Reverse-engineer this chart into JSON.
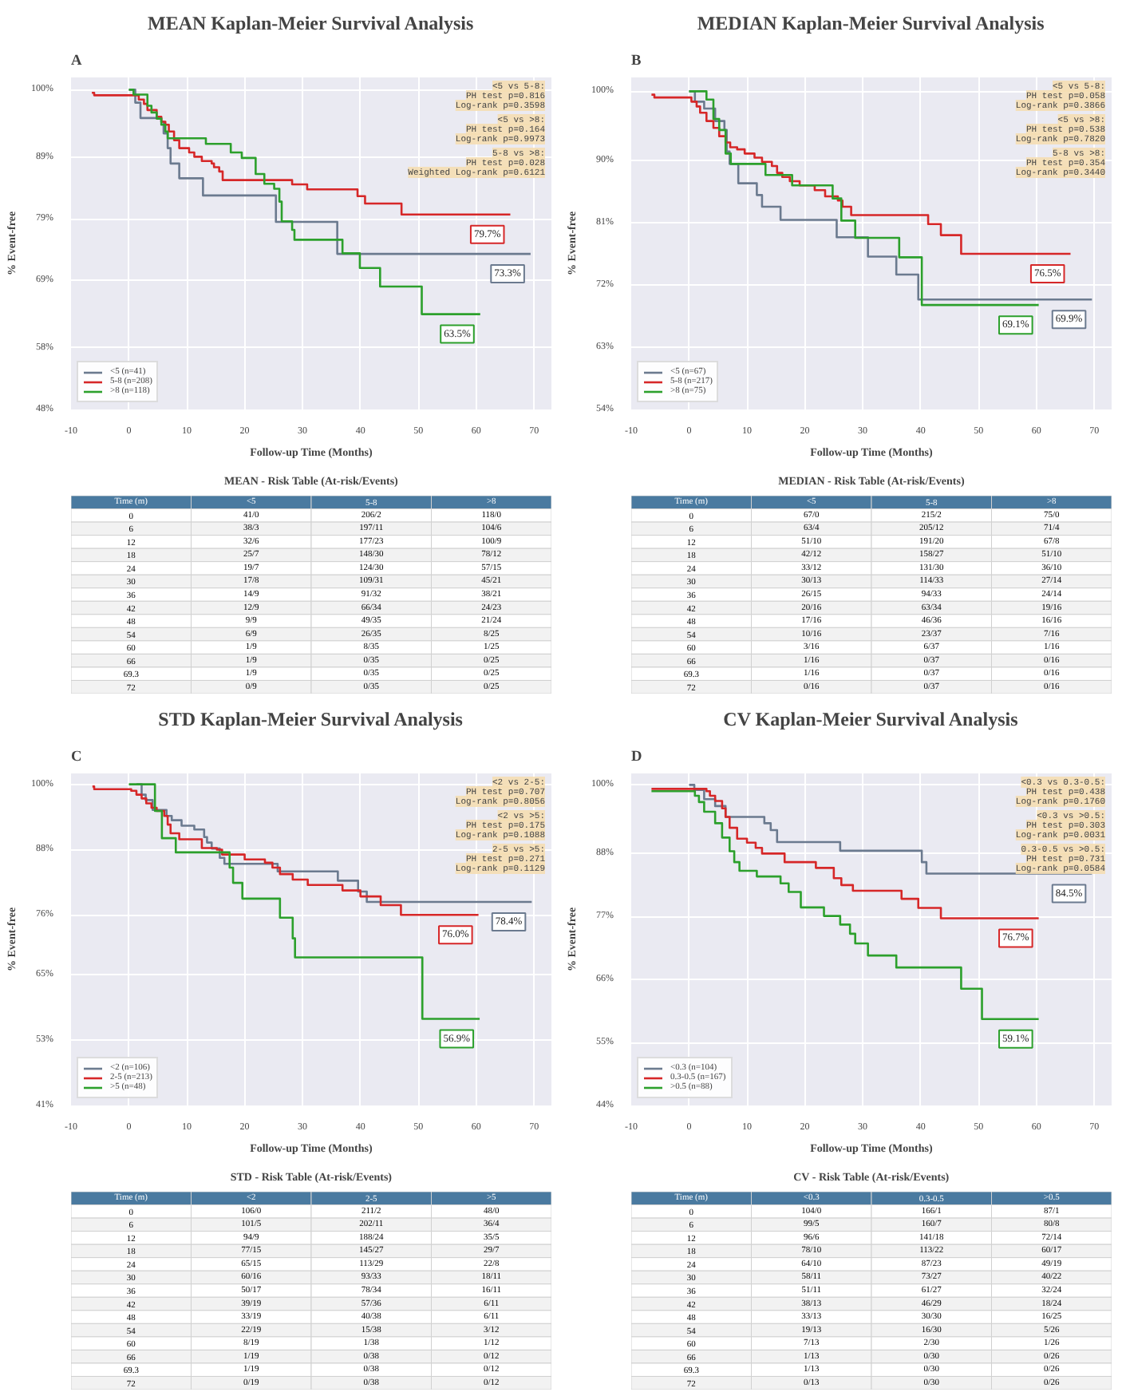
{
  "chart_data": [
    {
      "type": "step",
      "title": "MEAN Kaplan-Meier Survival Analysis",
      "xlabel": "Follow-up Time (Months)",
      "ylabel": "% Event-free",
      "xlim": [
        -10,
        73
      ],
      "xticks": [
        -10,
        0,
        10,
        20,
        30,
        40,
        50,
        60,
        70
      ],
      "ylim": [
        48,
        102
      ],
      "yticks": [
        {
          "value": 48,
          "label": "48%"
        },
        {
          "value": 58,
          "label": "58%"
        },
        {
          "value": 69,
          "label": "69%"
        },
        {
          "value": 79,
          "label": "79%"
        },
        {
          "value": 89,
          "label": "89%"
        },
        {
          "value": 100,
          "label": "100%"
        }
      ],
      "grid": true,
      "legend": "bottom left",
      "series": [
        {
          "name": "<5 (n=41)",
          "color": "#6b7a8f",
          "x": [
            0,
            1.1,
            2,
            5.6,
            6,
            6.7,
            7.2,
            8.7,
            12.8,
            25.4,
            36,
            69.4
          ],
          "values": [
            100,
            97.9,
            95.4,
            94.8,
            92.9,
            90.5,
            88,
            85.6,
            82.8,
            78.5,
            73.3,
            73.3
          ]
        },
        {
          "name": "5-8 (n=208)",
          "color": "#d62728",
          "x": [
            -6.4,
            -6,
            1.7,
            2.6,
            3.2,
            4.8,
            5.6,
            6.3,
            6.9,
            7.8,
            8.7,
            10.4,
            11.3,
            12.6,
            14.3,
            14.7,
            15.6,
            16.2,
            28.2,
            30.8,
            39.5,
            40.8,
            47.1,
            65.9
          ],
          "values": [
            99.5,
            99.1,
            98.4,
            97.7,
            96.7,
            95.6,
            94.8,
            94.3,
            93.2,
            91.8,
            90.5,
            89.8,
            89.1,
            88.4,
            88,
            87.4,
            86.7,
            85.3,
            84.6,
            83.8,
            82.7,
            81.5,
            79.7,
            79.7
          ]
        },
        {
          "name": ">8 (n=118)",
          "color": "#2ca02c",
          "x": [
            0,
            0.8,
            3.2,
            3.9,
            4.8,
            5.6,
            6.3,
            6.7,
            13.3,
            17.6,
            19.5,
            21.9,
            23.4,
            25.1,
            26,
            26.4,
            28.2,
            28.6,
            36.9,
            39.9,
            43.4,
            50.6,
            60.7
          ],
          "values": [
            100,
            99.2,
            97.4,
            96.3,
            95.3,
            94.3,
            93.2,
            92.1,
            91.2,
            89.8,
            88.9,
            86.3,
            84.7,
            83.9,
            81.8,
            78.6,
            77.2,
            75.6,
            73.4,
            71,
            68,
            63.5,
            63.5
          ]
        }
      ],
      "annotations": [
        "A",
        "<5 vs 5-8:\nPH test p=0.816\nLog-rank p=0.3598",
        "<5 vs >8:\nPH test p=0.164\nLog-rank p=0.9973",
        "5-8 vs >8:\nPH test p=0.028\nWeighted Log-rank p=0.6121",
        {
          "text": "73.3%",
          "x": 69.4,
          "y": 73.3
        },
        {
          "text": "79.7%",
          "x": 65.9,
          "y": 79.7
        },
        {
          "text": "63.5%",
          "x": 60.7,
          "y": 63.5
        }
      ]
    },
    {
      "type": "other",
      "title": "MEAN - Risk Table (At-risk/Events)",
      "categories": [
        "Time (m)",
        "<5",
        "5-8",
        ">8"
      ],
      "y_categories": [
        "0",
        "6",
        "12",
        "18",
        "24",
        "30",
        "36",
        "42",
        "48",
        "54",
        "60",
        "66",
        "69.3",
        "72"
      ],
      "cell_labels": [
        [
          "41/0",
          "206/2",
          "118/0"
        ],
        [
          "38/3",
          "197/11",
          "104/6"
        ],
        [
          "32/6",
          "177/23",
          "100/9"
        ],
        [
          "25/7",
          "148/30",
          "78/12"
        ],
        [
          "19/7",
          "124/30",
          "57/15"
        ],
        [
          "17/8",
          "109/31",
          "45/21"
        ],
        [
          "14/9",
          "91/32",
          "38/21"
        ],
        [
          "12/9",
          "66/34",
          "24/23"
        ],
        [
          "9/9",
          "49/35",
          "21/24"
        ],
        [
          "6/9",
          "26/35",
          "8/25"
        ],
        [
          "1/9",
          "8/35",
          "1/25"
        ],
        [
          "1/9",
          "0/35",
          "0/25"
        ],
        [
          "1/9",
          "0/35",
          "0/25"
        ],
        [
          "0/9",
          "0/35",
          "0/25"
        ]
      ]
    },
    {
      "type": "step",
      "title": "MEDIAN Kaplan-Meier Survival Analysis",
      "xlabel": "Follow-up Time (Months)",
      "ylabel": "% Event-free",
      "xlim": [
        -10,
        73
      ],
      "xticks": [
        -10,
        0,
        10,
        20,
        30,
        40,
        50,
        60,
        70
      ],
      "ylim": [
        54,
        102
      ],
      "yticks": [
        {
          "value": 54,
          "label": "54%"
        },
        {
          "value": 63,
          "label": "63%"
        },
        {
          "value": 72,
          "label": "72%"
        },
        {
          "value": 81,
          "label": "81%"
        },
        {
          "value": 90,
          "label": "90%"
        },
        {
          "value": 100,
          "label": "100%"
        }
      ],
      "grid": true,
      "legend": "bottom left",
      "series": [
        {
          "name": "<5 (n=67)",
          "color": "#6b7a8f",
          "x": [
            0,
            1,
            2.6,
            4.5,
            6.1,
            6.5,
            7,
            8.5,
            11.7,
            12.6,
            15.8,
            25.5,
            30.9,
            35.8,
            39.6,
            69.6
          ],
          "values": [
            100,
            98.5,
            97.5,
            95.7,
            94.4,
            91.3,
            89.5,
            86.7,
            85,
            83.3,
            81.4,
            78.9,
            76.1,
            73.5,
            69.9,
            69.9
          ]
        },
        {
          "name": "5-8 (n=217)",
          "color": "#d62728",
          "x": [
            -6.5,
            -6,
            0.4,
            1.3,
            1.9,
            3,
            4.2,
            5.2,
            6.3,
            7.1,
            8.3,
            9.6,
            11.3,
            12.6,
            14.3,
            15.2,
            16.1,
            17.4,
            19.1,
            21.7,
            23.5,
            25.7,
            26.5,
            28,
            41.3,
            43.5,
            47,
            50.4,
            65.9
          ],
          "values": [
            99.5,
            99.1,
            98.5,
            97.8,
            96.9,
            95.7,
            94.7,
            93.5,
            92.6,
            91.9,
            91.6,
            91,
            90.4,
            89.8,
            89.2,
            88.2,
            87.6,
            87,
            86.4,
            85.7,
            84.8,
            84.2,
            83.3,
            82.1,
            80.8,
            79.2,
            76.5,
            76.5,
            76.5
          ]
        },
        {
          "name": ">8 (n=75)",
          "color": "#2ca02c",
          "x": [
            0,
            3,
            4.2,
            5.2,
            6.3,
            7.2,
            13.2,
            17.8,
            24.8,
            26.3,
            28.7,
            36.3,
            40.2,
            60.4
          ],
          "values": [
            100,
            98.8,
            96,
            94.4,
            91,
            89.5,
            87.9,
            86.4,
            84.5,
            81.3,
            78.8,
            76,
            69.1,
            69.1
          ]
        }
      ],
      "annotations": [
        "B",
        "<5 vs 5-8:\nPH test p=0.058\nLog-rank p=0.3866",
        "<5 vs >8:\nPH test p=0.538\nLog-rank p=0.7820",
        "5-8 vs >8:\nPH test p=0.354\nLog-rank p=0.3440",
        {
          "text": "69.9%",
          "x": 69.6,
          "y": 69.9
        },
        {
          "text": "76.5%",
          "x": 65.9,
          "y": 76.5
        },
        {
          "text": "69.1%",
          "x": 60.4,
          "y": 69.1
        }
      ]
    },
    {
      "type": "other",
      "title": "MEDIAN - Risk Table (At-risk/Events)",
      "categories": [
        "Time (m)",
        "<5",
        "5-8",
        ">8"
      ],
      "y_categories": [
        "0",
        "6",
        "12",
        "18",
        "24",
        "30",
        "36",
        "42",
        "48",
        "54",
        "60",
        "66",
        "69.3",
        "72"
      ],
      "cell_labels": [
        [
          "67/0",
          "215/2",
          "75/0"
        ],
        [
          "63/4",
          "205/12",
          "71/4"
        ],
        [
          "51/10",
          "191/20",
          "67/8"
        ],
        [
          "42/12",
          "158/27",
          "51/10"
        ],
        [
          "33/12",
          "131/30",
          "36/10"
        ],
        [
          "30/13",
          "114/33",
          "27/14"
        ],
        [
          "26/15",
          "94/33",
          "24/14"
        ],
        [
          "20/16",
          "63/34",
          "19/16"
        ],
        [
          "17/16",
          "46/36",
          "16/16"
        ],
        [
          "10/16",
          "23/37",
          "7/16"
        ],
        [
          "3/16",
          "6/37",
          "1/16"
        ],
        [
          "1/16",
          "0/37",
          "0/16"
        ],
        [
          "1/16",
          "0/37",
          "0/16"
        ],
        [
          "0/16",
          "0/37",
          "0/16"
        ]
      ]
    },
    {
      "type": "step",
      "title": "STD Kaplan-Meier Survival Analysis",
      "xlabel": "Follow-up Time (Months)",
      "ylabel": "% Event-free",
      "xlim": [
        -10,
        73
      ],
      "xticks": [
        -10,
        0,
        10,
        20,
        30,
        40,
        50,
        60,
        70
      ],
      "ylim": [
        41,
        102
      ],
      "yticks": [
        {
          "value": 41,
          "label": "41%"
        },
        {
          "value": 53,
          "label": "53%"
        },
        {
          "value": 65,
          "label": "65%"
        },
        {
          "value": 76,
          "label": "76%"
        },
        {
          "value": 88,
          "label": "88%"
        },
        {
          "value": 100,
          "label": "100%"
        }
      ],
      "grid": true,
      "legend": "bottom left",
      "series": [
        {
          "name": "<2 (n=106)",
          "color": "#6b7a8f",
          "x": [
            1.3,
            2.2,
            2.9,
            4.1,
            6.5,
            7.4,
            9.1,
            11.3,
            13,
            13.5,
            14.3,
            15.7,
            16.5,
            25.7,
            36.1,
            39.6,
            41.1,
            69.6
          ],
          "values": [
            100,
            98.1,
            97.1,
            95.3,
            94.2,
            93.4,
            92.4,
            91.7,
            90.3,
            89.3,
            88.2,
            86.5,
            85.4,
            84,
            82.3,
            80.3,
            78.4,
            78.4
          ]
        },
        {
          "name": "2-5 (n=213)",
          "color": "#d62728",
          "x": [
            -6.3,
            -6,
            0.4,
            1.3,
            2.2,
            3,
            3.9,
            4.8,
            6.1,
            6.7,
            7.2,
            8.7,
            12.6,
            15.2,
            16.1,
            20,
            23.5,
            24.8,
            26.1,
            28.3,
            30.9,
            36.9,
            40,
            43.5,
            47,
            60.4
          ],
          "values": [
            99.6,
            99.1,
            98.8,
            98.1,
            97.4,
            96.5,
            95.7,
            95.1,
            94.2,
            92.6,
            91,
            89.9,
            88.3,
            88,
            87.1,
            86.2,
            85.6,
            84.7,
            83.5,
            82.5,
            81.5,
            80.5,
            79.4,
            77.8,
            76,
            76
          ]
        },
        {
          "name": ">5 (n=48)",
          "color": "#2ca02c",
          "x": [
            0,
            4.5,
            5.7,
            8.1,
            17.4,
            18,
            19.6,
            26.1,
            28.3,
            28.7,
            50.7,
            60.6
          ],
          "values": [
            100,
            95.1,
            90.1,
            87.5,
            84.7,
            81.9,
            79,
            75.5,
            71.7,
            68.2,
            56.9,
            56.9
          ]
        }
      ],
      "annotations": [
        "C",
        "<2 vs 2-5:\nPH test p=0.707\nLog-rank p=0.8056",
        "<2 vs >5:\nPH test p=0.175\nLog-rank p=0.1088",
        "2-5 vs >5:\nPH test p=0.271\nLog-rank p=0.1129",
        {
          "text": "78.4%",
          "x": 69.6,
          "y": 78.4
        },
        {
          "text": "76.0%",
          "x": 60.4,
          "y": 76
        },
        {
          "text": "56.9%",
          "x": 60.6,
          "y": 56.9
        }
      ]
    },
    {
      "type": "other",
      "title": "STD - Risk Table (At-risk/Events)",
      "categories": [
        "Time (m)",
        "<2",
        "2-5",
        ">5"
      ],
      "y_categories": [
        "0",
        "6",
        "12",
        "18",
        "24",
        "30",
        "36",
        "42",
        "48",
        "54",
        "60",
        "66",
        "69.3",
        "72"
      ],
      "cell_labels": [
        [
          "106/0",
          "211/2",
          "48/0"
        ],
        [
          "101/5",
          "202/11",
          "36/4"
        ],
        [
          "94/9",
          "188/24",
          "35/5"
        ],
        [
          "77/15",
          "145/27",
          "29/7"
        ],
        [
          "65/15",
          "113/29",
          "22/8"
        ],
        [
          "60/16",
          "93/33",
          "18/11"
        ],
        [
          "50/17",
          "78/34",
          "16/11"
        ],
        [
          "39/19",
          "57/36",
          "6/11"
        ],
        [
          "33/19",
          "40/38",
          "6/11"
        ],
        [
          "22/19",
          "15/38",
          "3/12"
        ],
        [
          "8/19",
          "1/38",
          "1/12"
        ],
        [
          "1/19",
          "0/38",
          "0/12"
        ],
        [
          "1/19",
          "0/38",
          "0/12"
        ],
        [
          "0/19",
          "0/38",
          "0/12"
        ]
      ]
    },
    {
      "type": "step",
      "title": "CV Kaplan-Meier Survival Analysis",
      "xlabel": "Follow-up Time (Months)",
      "ylabel": "% Event-free",
      "xlim": [
        -10,
        73
      ],
      "xticks": [
        -10,
        0,
        10,
        20,
        30,
        40,
        50,
        60,
        70
      ],
      "ylim": [
        44,
        102
      ],
      "yticks": [
        {
          "value": 44,
          "label": "44%"
        },
        {
          "value": 55,
          "label": "55%"
        },
        {
          "value": 66,
          "label": "66%"
        },
        {
          "value": 77,
          "label": "77%"
        },
        {
          "value": 88,
          "label": "88%"
        },
        {
          "value": 100,
          "label": "100%"
        }
      ],
      "grid": true,
      "legend": "bottom left",
      "series": [
        {
          "name": "<0.3 (n=104)",
          "color": "#6b7a8f",
          "x": [
            0,
            0.9,
            2.6,
            4.5,
            6.3,
            13,
            14.1,
            15.2,
            26.1,
            40.2,
            41,
            69.6
          ],
          "values": [
            100,
            99.1,
            97.5,
            96.3,
            94.4,
            93.3,
            92.1,
            90,
            88.5,
            86.5,
            84.5,
            84.5
          ]
        },
        {
          "name": "0.3-0.5 (n=167)",
          "color": "#d62728",
          "x": [
            -6.5,
            3,
            3.6,
            4.5,
            5.7,
            6.3,
            7,
            8.3,
            10,
            11.5,
            12.6,
            16.5,
            21.9,
            25,
            26.3,
            28.3,
            36.7,
            39.6,
            43.5,
            60.4
          ],
          "values": [
            99.3,
            98.9,
            98.1,
            97.2,
            95.9,
            94.4,
            92.5,
            90.6,
            89.9,
            89,
            88,
            86.5,
            85.5,
            83.7,
            82.5,
            81.5,
            80.1,
            78.5,
            76.7,
            76.7
          ]
        },
        {
          "name": ">0.5 (n=88)",
          "color": "#2ca02c",
          "x": [
            -6.5,
            1,
            1.7,
            2.6,
            4.5,
            5.7,
            7,
            7.8,
            8.7,
            11.7,
            15.8,
            17.2,
            19.3,
            23.3,
            26.1,
            27.8,
            28.7,
            30.9,
            35.8,
            47,
            50.6,
            60.4
          ],
          "values": [
            98.9,
            98.1,
            97,
            95.3,
            93.3,
            90.8,
            88.4,
            86.5,
            85,
            84,
            82.8,
            81.3,
            78.6,
            77.1,
            75.6,
            74,
            72.3,
            70.2,
            68.1,
            64.4,
            59.1,
            59.1
          ]
        }
      ],
      "annotations": [
        "D",
        "<0.3 vs 0.3-0.5:\nPH test p=0.438\nLog-rank p=0.1760",
        "<0.3 vs >0.5:\nPH test p=0.303\nLog-rank p=0.0031",
        "0.3-0.5 vs >0.5:\nPH test p=0.731\nLog-rank p=0.0584",
        {
          "text": "84.5%",
          "x": 69.6,
          "y": 84.5
        },
        {
          "text": "76.7%",
          "x": 60.4,
          "y": 76.7
        },
        {
          "text": "59.1%",
          "x": 60.4,
          "y": 59.1
        }
      ]
    },
    {
      "type": "other",
      "title": "CV - Risk Table (At-risk/Events)",
      "categories": [
        "Time (m)",
        "<0.3",
        "0.3-0.5",
        ">0.5"
      ],
      "y_categories": [
        "0",
        "6",
        "12",
        "18",
        "24",
        "30",
        "36",
        "42",
        "48",
        "54",
        "60",
        "66",
        "69.3",
        "72"
      ],
      "cell_labels": [
        [
          "104/0",
          "166/1",
          "87/1"
        ],
        [
          "99/5",
          "160/7",
          "80/8"
        ],
        [
          "96/6",
          "141/18",
          "72/14"
        ],
        [
          "78/10",
          "113/22",
          "60/17"
        ],
        [
          "64/10",
          "87/23",
          "49/19"
        ],
        [
          "58/11",
          "73/27",
          "40/22"
        ],
        [
          "51/11",
          "61/27",
          "32/24"
        ],
        [
          "38/13",
          "46/29",
          "18/24"
        ],
        [
          "33/13",
          "30/30",
          "16/25"
        ],
        [
          "19/13",
          "16/30",
          "5/26"
        ],
        [
          "7/13",
          "2/30",
          "1/26"
        ],
        [
          "1/13",
          "0/30",
          "0/26"
        ],
        [
          "1/13",
          "0/30",
          "0/26"
        ],
        [
          "0/13",
          "0/30",
          "0/26"
        ]
      ]
    }
  ]
}
